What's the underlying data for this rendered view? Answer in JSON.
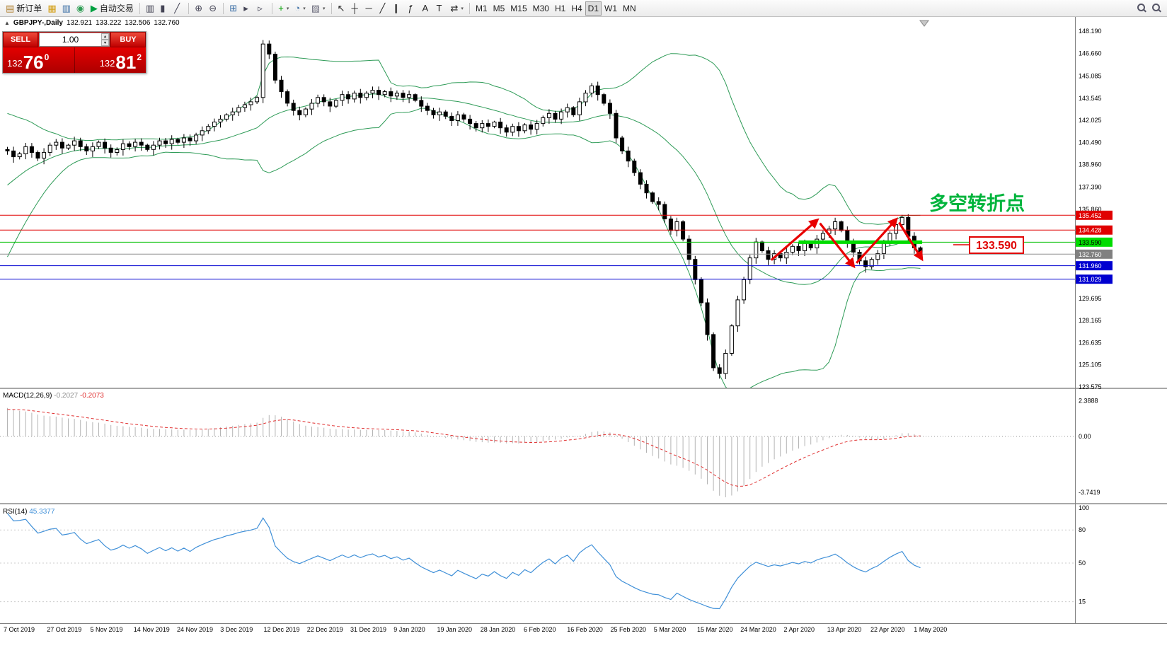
{
  "toolbar": {
    "groups": [
      {
        "name": "trade",
        "items": [
          {
            "name": "new-order-button",
            "glyph": "▤",
            "color": "#b08030",
            "label": "新订单"
          },
          {
            "name": "toolbox-button",
            "glyph": "▦",
            "color": "#d4a017"
          },
          {
            "name": "market-watch-button",
            "glyph": "▥",
            "color": "#3a6ea5"
          },
          {
            "name": "navigator-button",
            "glyph": "◉",
            "color": "#2f9e55"
          },
          {
            "name": "autotrading-button",
            "glyph": "▶",
            "color": "#00a040",
            "label": "自动交易"
          }
        ]
      },
      {
        "name": "chart-type",
        "items": [
          {
            "name": "bar-chart-button",
            "glyph": "▥",
            "color": "#445"
          },
          {
            "name": "candlestick-chart-button",
            "glyph": "▮",
            "color": "#445"
          },
          {
            "name": "line-chart-button",
            "glyph": "╱",
            "color": "#445"
          }
        ]
      },
      {
        "name": "zoom",
        "items": [
          {
            "name": "zoom-in-button",
            "glyph": "⊕",
            "color": "#445"
          },
          {
            "name": "zoom-out-button",
            "glyph": "⊖",
            "color": "#445"
          }
        ]
      },
      {
        "name": "windows",
        "items": [
          {
            "name": "tile-windows-button",
            "glyph": "⊞",
            "color": "#3a6ea5"
          },
          {
            "name": "auto-scroll-button",
            "glyph": "▸",
            "color": "#445"
          },
          {
            "name": "chart-shift-button",
            "glyph": "▹",
            "color": "#445"
          }
        ]
      },
      {
        "name": "insert",
        "items": [
          {
            "name": "indicators-button",
            "glyph": "+",
            "color": "#00a000",
            "dropdown": true
          },
          {
            "name": "periods-button",
            "glyph": "◔",
            "color": "#3a6ea5",
            "dropdown": true
          },
          {
            "name": "templates-button",
            "glyph": "▨",
            "color": "#667",
            "dropdown": true
          }
        ]
      },
      {
        "name": "drawing",
        "items": [
          {
            "name": "cursor-button",
            "glyph": "↖",
            "color": "#222"
          },
          {
            "name": "crosshair-button",
            "glyph": "┼",
            "color": "#222"
          },
          {
            "name": "horizontal-line-button",
            "glyph": "─",
            "color": "#222"
          },
          {
            "name": "trendline-button",
            "glyph": "╱",
            "color": "#222"
          },
          {
            "name": "equidistant-channel-button",
            "glyph": "∥",
            "color": "#222"
          },
          {
            "name": "fibonacci-button",
            "glyph": "ƒ",
            "color": "#222"
          },
          {
            "name": "text-button",
            "glyph": "A",
            "color": "#222"
          },
          {
            "name": "text-label-button",
            "glyph": "T",
            "color": "#222"
          },
          {
            "name": "arrows-button",
            "glyph": "⇄",
            "color": "#222",
            "dropdown": true
          }
        ]
      },
      {
        "name": "timeframes",
        "items": [
          {
            "name": "timeframe-m1",
            "label": "M1"
          },
          {
            "name": "timeframe-m5",
            "label": "M5"
          },
          {
            "name": "timeframe-m15",
            "label": "M15"
          },
          {
            "name": "timeframe-m30",
            "label": "M30"
          },
          {
            "name": "timeframe-h1",
            "label": "H1"
          },
          {
            "name": "timeframe-h4",
            "label": "H4"
          },
          {
            "name": "timeframe-d1",
            "label": "D1",
            "active": true
          },
          {
            "name": "timeframe-w1",
            "label": "W1"
          },
          {
            "name": "timeframe-mn",
            "label": "MN"
          }
        ]
      }
    ],
    "right_icons": [
      {
        "name": "search-icon"
      },
      {
        "name": "symbol-search-icon"
      }
    ]
  },
  "symbol_bar": {
    "collapse_glyph": "▲",
    "title": "GBPJPY-,Daily",
    "open": "132.921",
    "high": "133.222",
    "low": "132.506",
    "close": "132.760"
  },
  "trade_panel": {
    "sell_label": "SELL",
    "buy_label": "BUY",
    "volume_value": "1.00",
    "spin_up": "▴",
    "spin_down": "▾",
    "sell_small": "132",
    "sell_big": "76",
    "sell_sup": "0",
    "buy_small": "132",
    "buy_big": "81",
    "buy_sup": "2"
  },
  "macd": {
    "label": "MACD(12,26,9)",
    "main": "-0.2027",
    "signal": "-0.2073",
    "axis": [
      "2.3888",
      "0.00",
      "-3.7419"
    ]
  },
  "rsi": {
    "label": "RSI(14)",
    "value": "45.3377",
    "axis": [
      "100",
      "80",
      "50",
      "15"
    ]
  },
  "x_axis": {
    "labels": [
      "7 Oct 2019",
      "27 Oct 2019",
      "5 Nov 2019",
      "14 Nov 2019",
      "24 Nov 2019",
      "3 Dec 2019",
      "12 Dec 2019",
      "22 Dec 2019",
      "31 Dec 2019",
      "9 Jan 2020",
      "19 Jan 2020",
      "28 Jan 2020",
      "6 Feb 2020",
      "16 Feb 2020",
      "25 Feb 2020",
      "5 Mar 2020",
      "15 Mar 2020",
      "24 Mar 2020",
      "2 Apr 2020",
      "13 Apr 2020",
      "22 Apr 2020",
      "1 May 2020"
    ]
  },
  "chart_data": {
    "type": "candlestick",
    "symbol": "GBPJPY-",
    "timeframe": "Daily",
    "ohlc_display": {
      "open": 132.921,
      "high": 133.222,
      "low": 132.506,
      "close": 132.76
    },
    "y_axis": {
      "ticks": [
        "148.190",
        "146.660",
        "145.085",
        "143.545",
        "142.025",
        "140.490",
        "138.960",
        "137.390",
        "135.860",
        "129.695",
        "128.165",
        "126.635",
        "125.105",
        "123.575"
      ]
    },
    "warmup_closes": [
      132.0,
      132.6,
      133.2,
      133.9,
      134.6,
      135.2,
      135.8,
      136.4,
      137.0,
      137.5,
      138.0,
      138.5,
      138.9,
      139.3,
      139.6,
      139.9,
      140.1,
      140.2,
      140.1,
      140.0
    ],
    "closes": [
      139.9,
      139.5,
      139.7,
      140.2,
      139.8,
      139.4,
      139.8,
      140.3,
      140.5,
      140.1,
      140.3,
      140.6,
      140.2,
      139.9,
      140.2,
      140.5,
      140.1,
      139.8,
      140.0,
      140.4,
      140.2,
      140.5,
      140.3,
      140.0,
      140.3,
      140.6,
      140.4,
      140.7,
      140.5,
      140.8,
      140.6,
      141.0,
      141.3,
      141.6,
      141.9,
      142.1,
      142.4,
      142.6,
      142.9,
      143.1,
      143.3,
      143.6,
      147.3,
      146.6,
      144.8,
      144.0,
      143.2,
      142.7,
      142.4,
      142.8,
      143.2,
      143.6,
      143.3,
      143.0,
      143.4,
      143.8,
      143.5,
      143.9,
      143.6,
      143.9,
      144.1,
      143.8,
      144.0,
      143.7,
      143.9,
      143.6,
      143.8,
      143.4,
      143.0,
      142.7,
      142.4,
      142.6,
      142.3,
      142.0,
      142.4,
      142.1,
      141.8,
      141.5,
      141.8,
      141.6,
      141.9,
      141.5,
      141.2,
      141.6,
      141.3,
      141.7,
      141.4,
      141.8,
      142.2,
      142.5,
      142.1,
      142.6,
      142.9,
      142.4,
      143.3,
      143.9,
      144.4,
      143.8,
      143.2,
      142.5,
      140.8,
      139.9,
      139.2,
      138.4,
      137.6,
      137.0,
      136.4,
      136.2,
      135.2,
      134.4,
      135.0,
      133.8,
      132.4,
      131.0,
      129.4,
      127.2,
      124.9,
      124.5,
      125.9,
      127.8,
      129.6,
      131.0,
      132.5,
      133.6,
      133.0,
      132.4,
      132.8,
      132.5,
      132.9,
      133.3,
      133.0,
      133.5,
      133.2,
      133.8,
      134.2,
      134.5,
      135.0,
      134.4,
      133.6,
      132.9,
      132.3,
      131.9,
      132.4,
      132.8,
      133.5,
      134.2,
      134.8,
      135.3,
      134.0,
      133.2,
      132.76
    ],
    "indicators": {
      "bollinger": {
        "period": 20,
        "deviation": 2,
        "color": "#2e9b57"
      },
      "macd": {
        "fast": 12,
        "slow": 26,
        "signal": 9,
        "main_value": -0.2027,
        "signal_value": -0.2073,
        "histogram_color": "#b4b4b4",
        "signal_color": "#e03030"
      },
      "rsi": {
        "period": 14,
        "value": 45.3377,
        "color": "#4090d8",
        "levels": [
          80,
          50,
          15
        ]
      }
    },
    "hlines": [
      {
        "price": 135.452,
        "color": "#e00000",
        "width": 1,
        "label": "135.452",
        "bg": "#e00000",
        "fg": "#ffffff"
      },
      {
        "price": 134.428,
        "color": "#e00000",
        "width": 1,
        "label": "134.428",
        "bg": "#e00000",
        "fg": "#ffffff"
      },
      {
        "price": 133.59,
        "color": "#00c000",
        "width": 1,
        "label": "133.590",
        "bg": "#00dc00",
        "fg": "#000000"
      },
      {
        "price": 132.76,
        "color": "#909090",
        "width": 1,
        "label": "132.760",
        "bg": "#808080",
        "fg": "#ffffff"
      },
      {
        "price": 131.96,
        "color": "#0000d0",
        "width": 1,
        "label": "131.960",
        "bg": "#0000d0",
        "fg": "#ffffff"
      },
      {
        "price": 131.029,
        "color": "#0000d0",
        "width": 1,
        "label": "131.029",
        "bg": "#0000d0",
        "fg": "#ffffff"
      }
    ],
    "green_segment": {
      "price": 133.59,
      "i1": 130,
      "i2": 150.3,
      "width": 5,
      "color": "#00dc00"
    },
    "arrows": [
      [
        125.5,
        132.35,
        133,
        135.1
      ],
      [
        133.5,
        134.9,
        139,
        131.95
      ],
      [
        139.5,
        132.15,
        146,
        135.15
      ],
      [
        146.5,
        134.95,
        150.2,
        132.45
      ]
    ],
    "annotations": {
      "turning_point_text": "多空转折点",
      "turning_point_color": "#00b43c",
      "price_box_label": "133.590",
      "price_box_color": "#e00000",
      "arrow_color": "#e80000"
    }
  }
}
